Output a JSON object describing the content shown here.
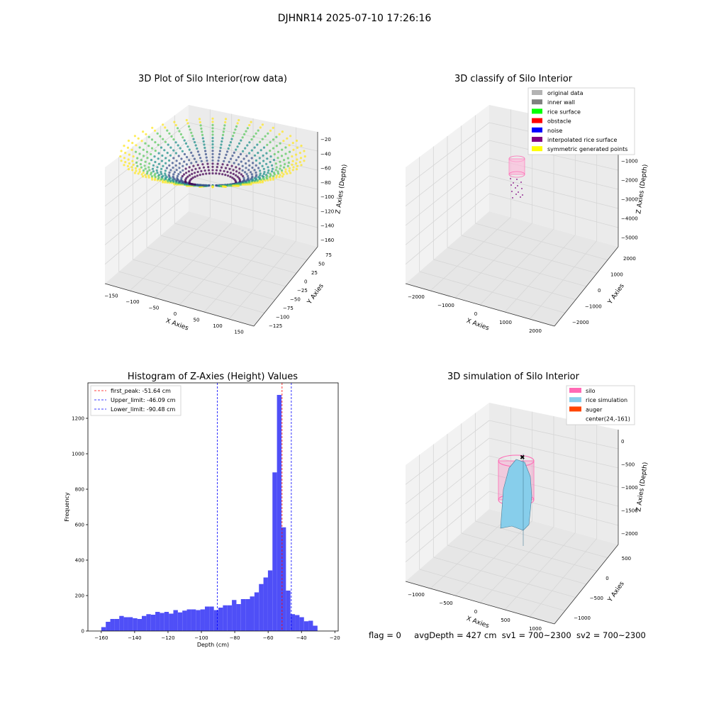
{
  "figure": {
    "suptitle": "DJHNR14 2025-07-10 17:26:16",
    "footer": {
      "flag": "flag = 0",
      "avg_depth": "avgDepth = 427 cm",
      "sv1": "sv1 = 700~2300",
      "sv2": "sv2 = 700~2300"
    }
  },
  "colors": {
    "hist_bar": "#4f4ff7",
    "peak_line": "#ff0000",
    "limit_line": "#0000ff",
    "pane": "#f2f2f2",
    "grid": "#d6d6d6",
    "silo": "#ff69b4",
    "rice": "#87ceeb",
    "auger": "#ff4500"
  },
  "chart_data": [
    {
      "type": "scatter",
      "projection": "3d",
      "title": "3D Plot of Silo Interior(row data)",
      "xlabel": "X Axies",
      "ylabel": "Y Axies",
      "zlabel": "Z Axies (Depth)",
      "x_ticks": [
        "−150",
        "−100",
        "−50",
        "0",
        "50",
        "100",
        "150"
      ],
      "y_ticks": [
        "−125",
        "−100",
        "−75",
        "−50",
        "−25",
        "0",
        "25",
        "50",
        "75"
      ],
      "z_ticks": [
        "−160",
        "−140",
        "−120",
        "−100",
        "−80",
        "−60",
        "−40",
        "−20"
      ],
      "colormap": "viridis",
      "description_values": {
        "z_range": [
          -165,
          -18
        ]
      }
    },
    {
      "type": "scatter",
      "projection": "3d",
      "title": "3D classify of Silo Interior",
      "xlabel": "X Axies",
      "ylabel": "Y Axies",
      "zlabel": "Z Axies (Depth)",
      "x_ticks": [
        "−2000",
        "−1000",
        "0",
        "1000",
        "2000"
      ],
      "y_ticks": [
        "−2000",
        "−1000",
        "0",
        "1000",
        "2000"
      ],
      "z_ticks": [
        "−5000",
        "−4000",
        "−3000",
        "−2000",
        "−1000",
        "0"
      ],
      "legend": [
        {
          "label": "original data",
          "color": "#b3b3b3"
        },
        {
          "label": "inner wall",
          "color": "#808080"
        },
        {
          "label": "rice surface",
          "color": "#00ff00"
        },
        {
          "label": "obstacle",
          "color": "#ff0000"
        },
        {
          "label": "noise",
          "color": "#0000ff"
        },
        {
          "label": "interpolated rice surface",
          "color": "#800080"
        },
        {
          "label": "symmetric generated points",
          "color": "#ffff00"
        }
      ],
      "legend_position": "top-right"
    },
    {
      "type": "bar",
      "title": "Histogram of Z-Axies (Height) Values",
      "xlabel": "Depth (cm)",
      "ylabel": "Frequency",
      "xlim": [
        -168,
        -18
      ],
      "ylim": [
        0,
        1400
      ],
      "x_ticks": [
        -160,
        -140,
        -120,
        -100,
        -80,
        -60,
        -40,
        -20
      ],
      "y_ticks": [
        0,
        200,
        400,
        600,
        800,
        1000,
        1200
      ],
      "bin_start": -160,
      "bin_width": 2.7,
      "values": [
        22,
        52,
        68,
        68,
        85,
        78,
        78,
        72,
        68,
        85,
        95,
        92,
        108,
        102,
        108,
        98,
        118,
        105,
        115,
        122,
        122,
        118,
        122,
        138,
        138,
        118,
        132,
        145,
        145,
        175,
        152,
        180,
        180,
        195,
        218,
        265,
        302,
        342,
        895,
        1332,
        585,
        228,
        95,
        90,
        78,
        55,
        58,
        30
      ],
      "vlines": [
        {
          "label": "first_peak: -51.64 cm",
          "x": -51.64,
          "color": "#ff0000"
        },
        {
          "label": "Upper_limit: -46.09 cm",
          "x": -46.09,
          "color": "#0000ff"
        },
        {
          "label": "Lower_limit: -90.48 cm",
          "x": -90.48,
          "color": "#0000ff"
        }
      ],
      "legend_position": "top-left",
      "grid": false
    },
    {
      "type": "surface",
      "projection": "3d",
      "title": "3D simulation of Silo Interior",
      "xlabel": "X Axies",
      "ylabel": "Y Axies",
      "zlabel": "Z Axies (Depth)",
      "x_ticks": [
        "−1000",
        "−500",
        "0",
        "500",
        "1000"
      ],
      "y_ticks": [
        "−1000",
        "−500",
        "0",
        "500"
      ],
      "z_ticks": [
        "−2000",
        "−1500",
        "−1000",
        "−500",
        "0"
      ],
      "legend": [
        {
          "label": "silo",
          "color": "#ff69b4",
          "marker": "patch"
        },
        {
          "label": "rice simulation",
          "color": "#87ceeb",
          "marker": "patch"
        },
        {
          "label": "auger",
          "color": "#ff4500",
          "marker": "patch"
        },
        {
          "label": "center(24,-161)",
          "color": "",
          "marker": "none"
        }
      ],
      "legend_position": "top-right"
    }
  ]
}
